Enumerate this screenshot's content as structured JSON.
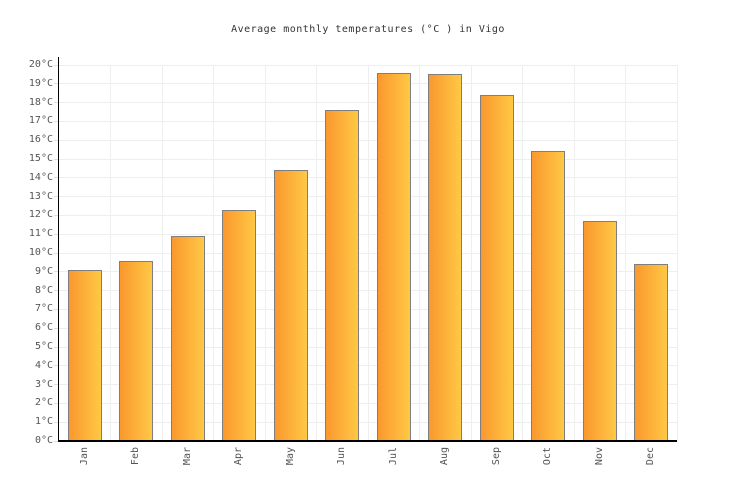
{
  "title": "Average monthly temperatures (°C ) in Vigo",
  "chart_data": {
    "type": "bar",
    "title": "Average monthly temperatures (°C ) in Vigo",
    "categories": [
      "Jan",
      "Feb",
      "Mar",
      "Apr",
      "May",
      "Jun",
      "Jul",
      "Aug",
      "Sep",
      "Oct",
      "Nov",
      "Dec"
    ],
    "values": [
      9.1,
      9.6,
      10.9,
      12.3,
      14.4,
      17.6,
      19.6,
      19.5,
      18.4,
      15.4,
      11.7,
      9.4
    ],
    "xlabel": "",
    "ylabel": "",
    "ylim": [
      0,
      20
    ],
    "ytick_step": 1,
    "ytick_suffix": "°C",
    "grid": true,
    "legend": false,
    "colors": {
      "bar_gradient_left": "#fa982e",
      "bar_gradient_right": "#ffc845",
      "bar_border": "#7e7e7e",
      "gridline": "#eeeeee",
      "axis": "#000000",
      "tick": "#dddddd",
      "axis_label": "#555555",
      "title": "#333333",
      "background": "#ffffff"
    }
  }
}
